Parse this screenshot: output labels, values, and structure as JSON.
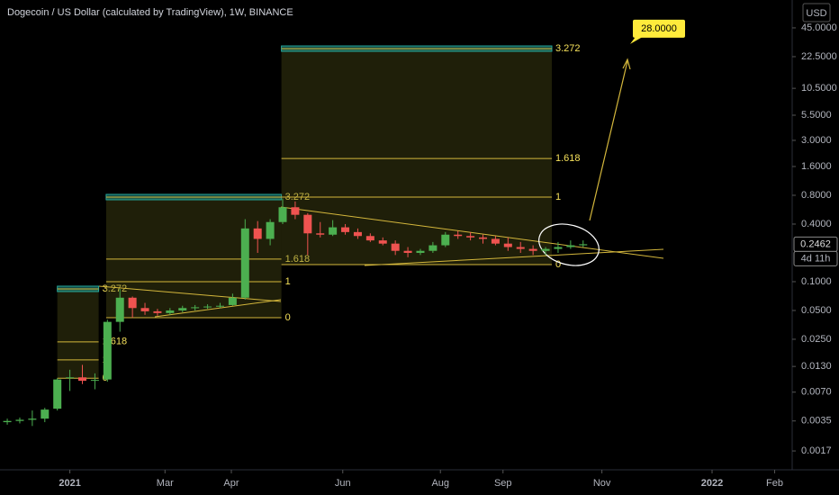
{
  "chart_data": {
    "type": "candlestick",
    "title": "Dogecoin / US Dollar (calculated by TradingView), 1W, BINANCE",
    "currency": "USD",
    "log_scale": true,
    "up_color": "#4caf50",
    "down_color": "#ef5350",
    "open": [
      0.0034,
      0.0035,
      0.0036,
      0.0037,
      0.0047,
      0.0098,
      0.01,
      0.0092,
      0.0095,
      0.038,
      0.068,
      0.053,
      0.049,
      0.047,
      0.05,
      0.053,
      0.054,
      0.055,
      0.057,
      0.068,
      0.36,
      0.28,
      0.42,
      0.6,
      0.5,
      0.32,
      0.31,
      0.37,
      0.33,
      0.3,
      0.27,
      0.25,
      0.21,
      0.2,
      0.21,
      0.24,
      0.31,
      0.3,
      0.29,
      0.28,
      0.25,
      0.23,
      0.22,
      0.21,
      0.22,
      0.23,
      0.24
    ],
    "high": [
      0.0037,
      0.0038,
      0.0045,
      0.0048,
      0.0098,
      0.012,
      0.0135,
      0.011,
      0.04,
      0.084,
      0.07,
      0.06,
      0.052,
      0.053,
      0.056,
      0.057,
      0.058,
      0.06,
      0.075,
      0.45,
      0.43,
      0.45,
      0.74,
      0.69,
      0.52,
      0.42,
      0.44,
      0.4,
      0.36,
      0.32,
      0.29,
      0.27,
      0.23,
      0.22,
      0.26,
      0.33,
      0.34,
      0.33,
      0.31,
      0.3,
      0.29,
      0.26,
      0.24,
      0.23,
      0.26,
      0.27,
      0.27
    ],
    "low": [
      0.0032,
      0.0033,
      0.0031,
      0.0034,
      0.0045,
      0.0072,
      0.0085,
      0.0075,
      0.009,
      0.03,
      0.042,
      0.045,
      0.044,
      0.045,
      0.048,
      0.05,
      0.052,
      0.053,
      0.056,
      0.065,
      0.2,
      0.24,
      0.4,
      0.45,
      0.19,
      0.29,
      0.3,
      0.31,
      0.28,
      0.26,
      0.24,
      0.19,
      0.18,
      0.19,
      0.2,
      0.23,
      0.28,
      0.27,
      0.25,
      0.24,
      0.21,
      0.2,
      0.19,
      0.19,
      0.2,
      0.22,
      0.23
    ],
    "close": [
      0.0035,
      0.0036,
      0.0037,
      0.0046,
      0.0095,
      0.01,
      0.0092,
      0.0094,
      0.038,
      0.068,
      0.053,
      0.049,
      0.047,
      0.05,
      0.053,
      0.054,
      0.055,
      0.056,
      0.068,
      0.36,
      0.28,
      0.42,
      0.6,
      0.5,
      0.32,
      0.31,
      0.37,
      0.33,
      0.3,
      0.27,
      0.25,
      0.21,
      0.2,
      0.21,
      0.24,
      0.31,
      0.3,
      0.29,
      0.28,
      0.25,
      0.23,
      0.22,
      0.21,
      0.22,
      0.23,
      0.24,
      0.2462
    ],
    "xlim": [
      -0.58,
      62.7
    ],
    "xticks": [
      {
        "value": 5,
        "label": "2021"
      },
      {
        "value": 12.6,
        "label": "Mar"
      },
      {
        "value": 17.9,
        "label": "Apr"
      },
      {
        "value": 26.8,
        "label": "Jun"
      },
      {
        "value": 34.6,
        "label": "Aug"
      },
      {
        "value": 39.6,
        "label": "Sep"
      },
      {
        "value": 47.5,
        "label": "Nov"
      },
      {
        "value": 56.3,
        "label": "2022"
      },
      {
        "value": 61.3,
        "label": "Feb"
      }
    ],
    "ylim": [
      0.00108,
      88
    ],
    "yticks": [
      {
        "value": 45,
        "label": "45.0000"
      },
      {
        "value": 22.5,
        "label": "22.5000"
      },
      {
        "value": 10.5,
        "label": "10.5000"
      },
      {
        "value": 5.5,
        "label": "5.5000"
      },
      {
        "value": 3,
        "label": "3.0000"
      },
      {
        "value": 1.6,
        "label": "1.6000"
      },
      {
        "value": 0.8,
        "label": "0.8000"
      },
      {
        "value": 0.4,
        "label": "0.4000"
      },
      {
        "value": 0.1,
        "label": "0.1000"
      },
      {
        "value": 0.05,
        "label": "0.0500"
      },
      {
        "value": 0.025,
        "label": "0.0250"
      },
      {
        "value": 0.013,
        "label": "0.0130"
      },
      {
        "value": 0.007,
        "label": "0.0070"
      },
      {
        "value": 0.0035,
        "label": "0.0035"
      },
      {
        "value": 0.0017,
        "label": "0.0017"
      }
    ],
    "last_price": {
      "value": 0.2462,
      "label": "0.2462"
    },
    "countdown": "4d 11h",
    "target": {
      "value": 28,
      "label": "28.0000"
    },
    "fib_sets": [
      {
        "x": [
          4,
          7.3
        ],
        "levels": [
          {
            "ratio": 3.272,
            "price": 0.0841
          },
          {
            "ratio": 1.618,
            "price": 0.0235
          },
          {
            "ratio": 1,
            "price": 0.0152
          },
          {
            "ratio": 0,
            "price": 0.0098
          }
        ]
      },
      {
        "x": [
          7.9,
          21.9
        ],
        "levels": [
          {
            "ratio": 3.272,
            "price": 0.766
          },
          {
            "ratio": 1.618,
            "price": 0.172
          },
          {
            "ratio": 1,
            "price": 0.1
          },
          {
            "ratio": 0,
            "price": 0.042
          }
        ]
      },
      {
        "x": [
          21.9,
          43.5
        ],
        "levels": [
          {
            "ratio": 3.272,
            "price": 27.3
          },
          {
            "ratio": 1.618,
            "price": 1.94
          },
          {
            "ratio": 1,
            "price": 0.766
          },
          {
            "ratio": 0,
            "price": 0.151
          }
        ]
      }
    ]
  }
}
